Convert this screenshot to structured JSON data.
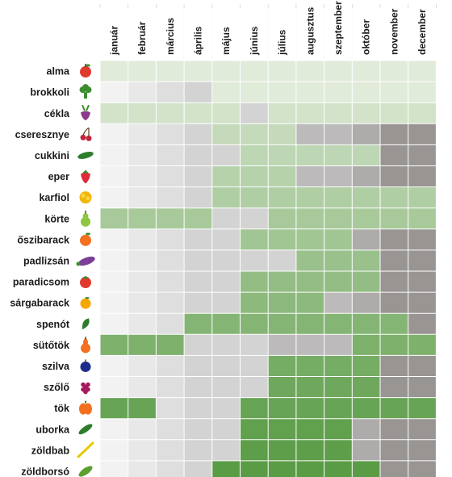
{
  "chart_data": {
    "type": "heatmap",
    "months": [
      "január",
      "február",
      "március",
      "április",
      "május",
      "június",
      "július",
      "augusztus",
      "szeptember",
      "október",
      "november",
      "december"
    ],
    "rows": [
      {
        "label": "alma",
        "icon": "apple-icon",
        "icon_color": "#e03a2f",
        "cells": [
          [
            "a",
            0.05
          ],
          [
            "a",
            0.05
          ],
          [
            "a",
            0.05
          ],
          [
            "a",
            0.05
          ],
          [
            "a",
            0.05
          ],
          [
            "a",
            0.05
          ],
          [
            "a",
            0.05
          ],
          [
            "a",
            0.05
          ],
          [
            "a",
            0.05
          ],
          [
            "a",
            0.05
          ],
          [
            "a",
            0.05
          ],
          [
            "a",
            0.05
          ]
        ]
      },
      {
        "label": "brokkoli",
        "icon": "broccoli-icon",
        "icon_color": "#3d8c2f",
        "cells": [
          [
            "g",
            0
          ],
          [
            "g",
            1
          ],
          [
            "g",
            2
          ],
          [
            "g",
            3
          ],
          [
            "a",
            0.05
          ],
          [
            "a",
            0.05
          ],
          [
            "a",
            0.05
          ],
          [
            "a",
            0.05
          ],
          [
            "a",
            0.05
          ],
          [
            "a",
            0.05
          ],
          [
            "a",
            0.05
          ],
          [
            "a",
            0.05
          ]
        ]
      },
      {
        "label": "cékla",
        "icon": "beet-icon",
        "icon_color": "#8e3a8c",
        "cells": [
          [
            "a",
            0.15
          ],
          [
            "a",
            0.15
          ],
          [
            "a",
            0.15
          ],
          [
            "a",
            0.15
          ],
          [
            "a",
            0.15
          ],
          [
            "g",
            3
          ],
          [
            "a",
            0.15
          ],
          [
            "a",
            0.15
          ],
          [
            "a",
            0.15
          ],
          [
            "a",
            0.15
          ],
          [
            "a",
            0.15
          ],
          [
            "a",
            0.15
          ]
        ]
      },
      {
        "label": "cseresznye",
        "icon": "cherry-icon",
        "icon_color": "#c0263a",
        "cells": [
          [
            "g",
            0
          ],
          [
            "g",
            1
          ],
          [
            "g",
            2
          ],
          [
            "g",
            3
          ],
          [
            "a",
            0.25
          ],
          [
            "a",
            0.25
          ],
          [
            "a",
            0.25
          ],
          [
            "g",
            4
          ],
          [
            "g",
            4
          ],
          [
            "g",
            5
          ],
          [
            "g",
            6
          ],
          [
            "g",
            6
          ]
        ]
      },
      {
        "label": "cukkini",
        "icon": "zucchini-icon",
        "icon_color": "#2d7d2d",
        "cells": [
          [
            "g",
            0
          ],
          [
            "g",
            1
          ],
          [
            "g",
            2
          ],
          [
            "g",
            3
          ],
          [
            "g",
            3
          ],
          [
            "a",
            0.3
          ],
          [
            "a",
            0.3
          ],
          [
            "a",
            0.3
          ],
          [
            "a",
            0.3
          ],
          [
            "a",
            0.3
          ],
          [
            "g",
            6
          ],
          [
            "g",
            6
          ]
        ]
      },
      {
        "label": "eper",
        "icon": "strawberry-icon",
        "icon_color": "#e02a3a",
        "cells": [
          [
            "g",
            0
          ],
          [
            "g",
            1
          ],
          [
            "g",
            2
          ],
          [
            "g",
            3
          ],
          [
            "a",
            0.35
          ],
          [
            "a",
            0.35
          ],
          [
            "a",
            0.35
          ],
          [
            "g",
            4
          ],
          [
            "g",
            4
          ],
          [
            "g",
            5
          ],
          [
            "g",
            6
          ],
          [
            "g",
            6
          ]
        ]
      },
      {
        "label": "karfiol",
        "icon": "cauliflower-icon",
        "icon_color": "#f2b705",
        "cells": [
          [
            "g",
            0
          ],
          [
            "g",
            1
          ],
          [
            "g",
            2
          ],
          [
            "g",
            3
          ],
          [
            "a",
            0.4
          ],
          [
            "a",
            0.4
          ],
          [
            "a",
            0.4
          ],
          [
            "a",
            0.4
          ],
          [
            "a",
            0.4
          ],
          [
            "a",
            0.4
          ],
          [
            "a",
            0.4
          ],
          [
            "a",
            0.4
          ]
        ]
      },
      {
        "label": "körte",
        "icon": "pear-icon",
        "icon_color": "#8dc63f",
        "cells": [
          [
            "a",
            0.45
          ],
          [
            "a",
            0.45
          ],
          [
            "a",
            0.45
          ],
          [
            "a",
            0.45
          ],
          [
            "g",
            3
          ],
          [
            "g",
            3
          ],
          [
            "a",
            0.45
          ],
          [
            "a",
            0.45
          ],
          [
            "a",
            0.45
          ],
          [
            "a",
            0.45
          ],
          [
            "a",
            0.45
          ],
          [
            "a",
            0.45
          ]
        ]
      },
      {
        "label": "őszibarack",
        "icon": "peach-icon",
        "icon_color": "#f37021",
        "cells": [
          [
            "g",
            0
          ],
          [
            "g",
            1
          ],
          [
            "g",
            2
          ],
          [
            "g",
            3
          ],
          [
            "g",
            3
          ],
          [
            "a",
            0.5
          ],
          [
            "a",
            0.5
          ],
          [
            "a",
            0.5
          ],
          [
            "a",
            0.5
          ],
          [
            "g",
            5
          ],
          [
            "g",
            6
          ],
          [
            "g",
            6
          ]
        ]
      },
      {
        "label": "padlizsán",
        "icon": "eggplant-icon",
        "icon_color": "#7b3f9a",
        "cells": [
          [
            "g",
            0
          ],
          [
            "g",
            1
          ],
          [
            "g",
            2
          ],
          [
            "g",
            3
          ],
          [
            "g",
            3
          ],
          [
            "g",
            3
          ],
          [
            "g",
            3
          ],
          [
            "a",
            0.55
          ],
          [
            "a",
            0.55
          ],
          [
            "a",
            0.55
          ],
          [
            "g",
            6
          ],
          [
            "g",
            6
          ]
        ]
      },
      {
        "label": "paradicsom",
        "icon": "tomato-icon",
        "icon_color": "#e03a2f",
        "cells": [
          [
            "g",
            0
          ],
          [
            "g",
            1
          ],
          [
            "g",
            2
          ],
          [
            "g",
            3
          ],
          [
            "g",
            3
          ],
          [
            "a",
            0.6
          ],
          [
            "a",
            0.6
          ],
          [
            "a",
            0.6
          ],
          [
            "a",
            0.6
          ],
          [
            "a",
            0.6
          ],
          [
            "g",
            6
          ],
          [
            "g",
            6
          ]
        ]
      },
      {
        "label": "sárgabarack",
        "icon": "apricot-icon",
        "icon_color": "#f6a800",
        "cells": [
          [
            "g",
            0
          ],
          [
            "g",
            1
          ],
          [
            "g",
            2
          ],
          [
            "g",
            3
          ],
          [
            "g",
            3
          ],
          [
            "a",
            0.65
          ],
          [
            "a",
            0.65
          ],
          [
            "a",
            0.65
          ],
          [
            "g",
            4
          ],
          [
            "g",
            5
          ],
          [
            "g",
            6
          ],
          [
            "g",
            6
          ]
        ]
      },
      {
        "label": "spenót",
        "icon": "spinach-icon",
        "icon_color": "#2d7d2d",
        "cells": [
          [
            "g",
            0
          ],
          [
            "g",
            1
          ],
          [
            "g",
            2
          ],
          [
            "a",
            0.7
          ],
          [
            "a",
            0.7
          ],
          [
            "a",
            0.7
          ],
          [
            "a",
            0.7
          ],
          [
            "a",
            0.7
          ],
          [
            "a",
            0.7
          ],
          [
            "a",
            0.7
          ],
          [
            "a",
            0.7
          ],
          [
            "g",
            6
          ]
        ]
      },
      {
        "label": "sütőtök",
        "icon": "squash-icon",
        "icon_color": "#f37021",
        "cells": [
          [
            "a",
            0.75
          ],
          [
            "a",
            0.75
          ],
          [
            "a",
            0.75
          ],
          [
            "g",
            3
          ],
          [
            "g",
            3
          ],
          [
            "g",
            3
          ],
          [
            "g",
            4
          ],
          [
            "g",
            4
          ],
          [
            "g",
            4
          ],
          [
            "a",
            0.75
          ],
          [
            "a",
            0.75
          ],
          [
            "a",
            0.75
          ]
        ]
      },
      {
        "label": "szilva",
        "icon": "plum-icon",
        "icon_color": "#1f2b8c",
        "cells": [
          [
            "g",
            0
          ],
          [
            "g",
            1
          ],
          [
            "g",
            2
          ],
          [
            "g",
            3
          ],
          [
            "g",
            3
          ],
          [
            "g",
            3
          ],
          [
            "a",
            0.8
          ],
          [
            "a",
            0.8
          ],
          [
            "a",
            0.8
          ],
          [
            "a",
            0.8
          ],
          [
            "g",
            6
          ],
          [
            "g",
            6
          ]
        ]
      },
      {
        "label": "szőlő",
        "icon": "grape-icon",
        "icon_color": "#a3195b",
        "cells": [
          [
            "g",
            0
          ],
          [
            "g",
            1
          ],
          [
            "g",
            2
          ],
          [
            "g",
            3
          ],
          [
            "g",
            3
          ],
          [
            "g",
            3
          ],
          [
            "a",
            0.85
          ],
          [
            "a",
            0.85
          ],
          [
            "a",
            0.85
          ],
          [
            "a",
            0.85
          ],
          [
            "g",
            6
          ],
          [
            "g",
            6
          ]
        ]
      },
      {
        "label": "tök",
        "icon": "pumpkin-icon",
        "icon_color": "#f37021",
        "cells": [
          [
            "a",
            0.9
          ],
          [
            "a",
            0.9
          ],
          [
            "g",
            2
          ],
          [
            "g",
            3
          ],
          [
            "g",
            3
          ],
          [
            "a",
            0.9
          ],
          [
            "a",
            0.9
          ],
          [
            "a",
            0.9
          ],
          [
            "a",
            0.9
          ],
          [
            "a",
            0.9
          ],
          [
            "a",
            0.9
          ],
          [
            "a",
            0.9
          ]
        ]
      },
      {
        "label": "uborka",
        "icon": "cucumber-icon",
        "icon_color": "#2d7d2d",
        "cells": [
          [
            "g",
            0
          ],
          [
            "g",
            1
          ],
          [
            "g",
            2
          ],
          [
            "g",
            3
          ],
          [
            "g",
            3
          ],
          [
            "a",
            0.95
          ],
          [
            "a",
            0.95
          ],
          [
            "a",
            0.95
          ],
          [
            "a",
            0.95
          ],
          [
            "g",
            5
          ],
          [
            "g",
            6
          ],
          [
            "g",
            6
          ]
        ]
      },
      {
        "label": "zöldbab",
        "icon": "greenbean-icon",
        "icon_color": "#e8c900",
        "cells": [
          [
            "g",
            0
          ],
          [
            "g",
            1
          ],
          [
            "g",
            2
          ],
          [
            "g",
            3
          ],
          [
            "g",
            3
          ],
          [
            "a",
            0.97
          ],
          [
            "a",
            0.97
          ],
          [
            "a",
            0.97
          ],
          [
            "a",
            0.97
          ],
          [
            "g",
            5
          ],
          [
            "g",
            6
          ],
          [
            "g",
            6
          ]
        ]
      },
      {
        "label": "zöldborsó",
        "icon": "pea-icon",
        "icon_color": "#5aa02c",
        "cells": [
          [
            "g",
            0
          ],
          [
            "g",
            1
          ],
          [
            "g",
            2
          ],
          [
            "g",
            3
          ],
          [
            "a",
            1
          ],
          [
            "a",
            1
          ],
          [
            "a",
            1
          ],
          [
            "a",
            1
          ],
          [
            "a",
            1
          ],
          [
            "a",
            1
          ],
          [
            "g",
            6
          ],
          [
            "g",
            6
          ]
        ]
      }
    ],
    "colors": {
      "available_light": "#e8efe2",
      "available_dark": "#5a9c45",
      "unavailable_shades": [
        "#f2f2f2",
        "#e8e8e8",
        "#dedede",
        "#d3d3d3",
        "#bcbaba",
        "#aeacab",
        "#999592"
      ]
    }
  }
}
